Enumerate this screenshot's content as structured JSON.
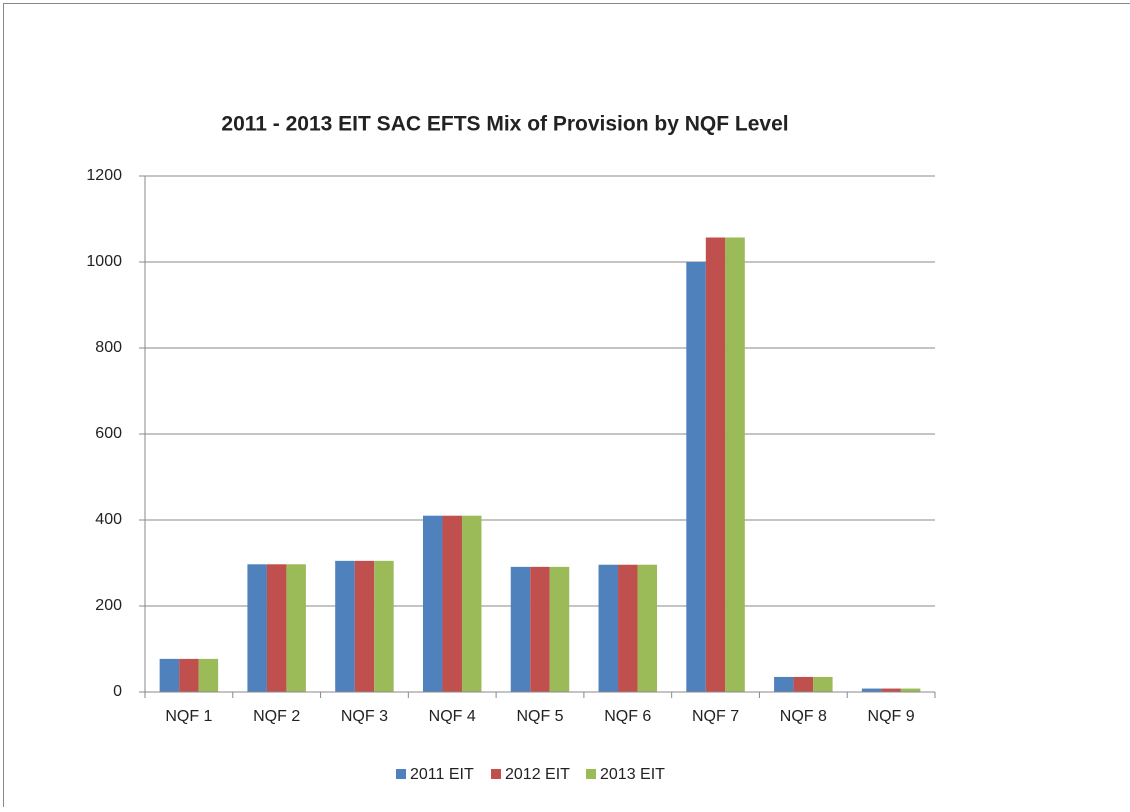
{
  "chart_data": {
    "type": "bar",
    "title": "2011 - 2013 EIT SAC EFTS Mix of Provision by NQF Level",
    "categories": [
      "NQF 1",
      "NQF 2",
      "NQF 3",
      "NQF 4",
      "NQF 5",
      "NQF 6",
      "NQF 7",
      "NQF 8",
      "NQF 9"
    ],
    "series": [
      {
        "name": "2011 EIT",
        "color": "#4f81bd",
        "values": [
          77,
          297,
          305,
          410,
          291,
          296,
          1000,
          35,
          8
        ]
      },
      {
        "name": "2012 EIT",
        "color": "#c0504d",
        "values": [
          77,
          297,
          305,
          410,
          291,
          296,
          1057,
          35,
          8
        ]
      },
      {
        "name": "2013 EIT",
        "color": "#9bbb59",
        "values": [
          77,
          297,
          305,
          410,
          291,
          296,
          1057,
          35,
          8
        ]
      }
    ],
    "ylim": [
      0,
      1200
    ],
    "yticks": [
      0,
      200,
      400,
      600,
      800,
      1000,
      1200
    ],
    "grid": true,
    "legend": "bottom"
  }
}
